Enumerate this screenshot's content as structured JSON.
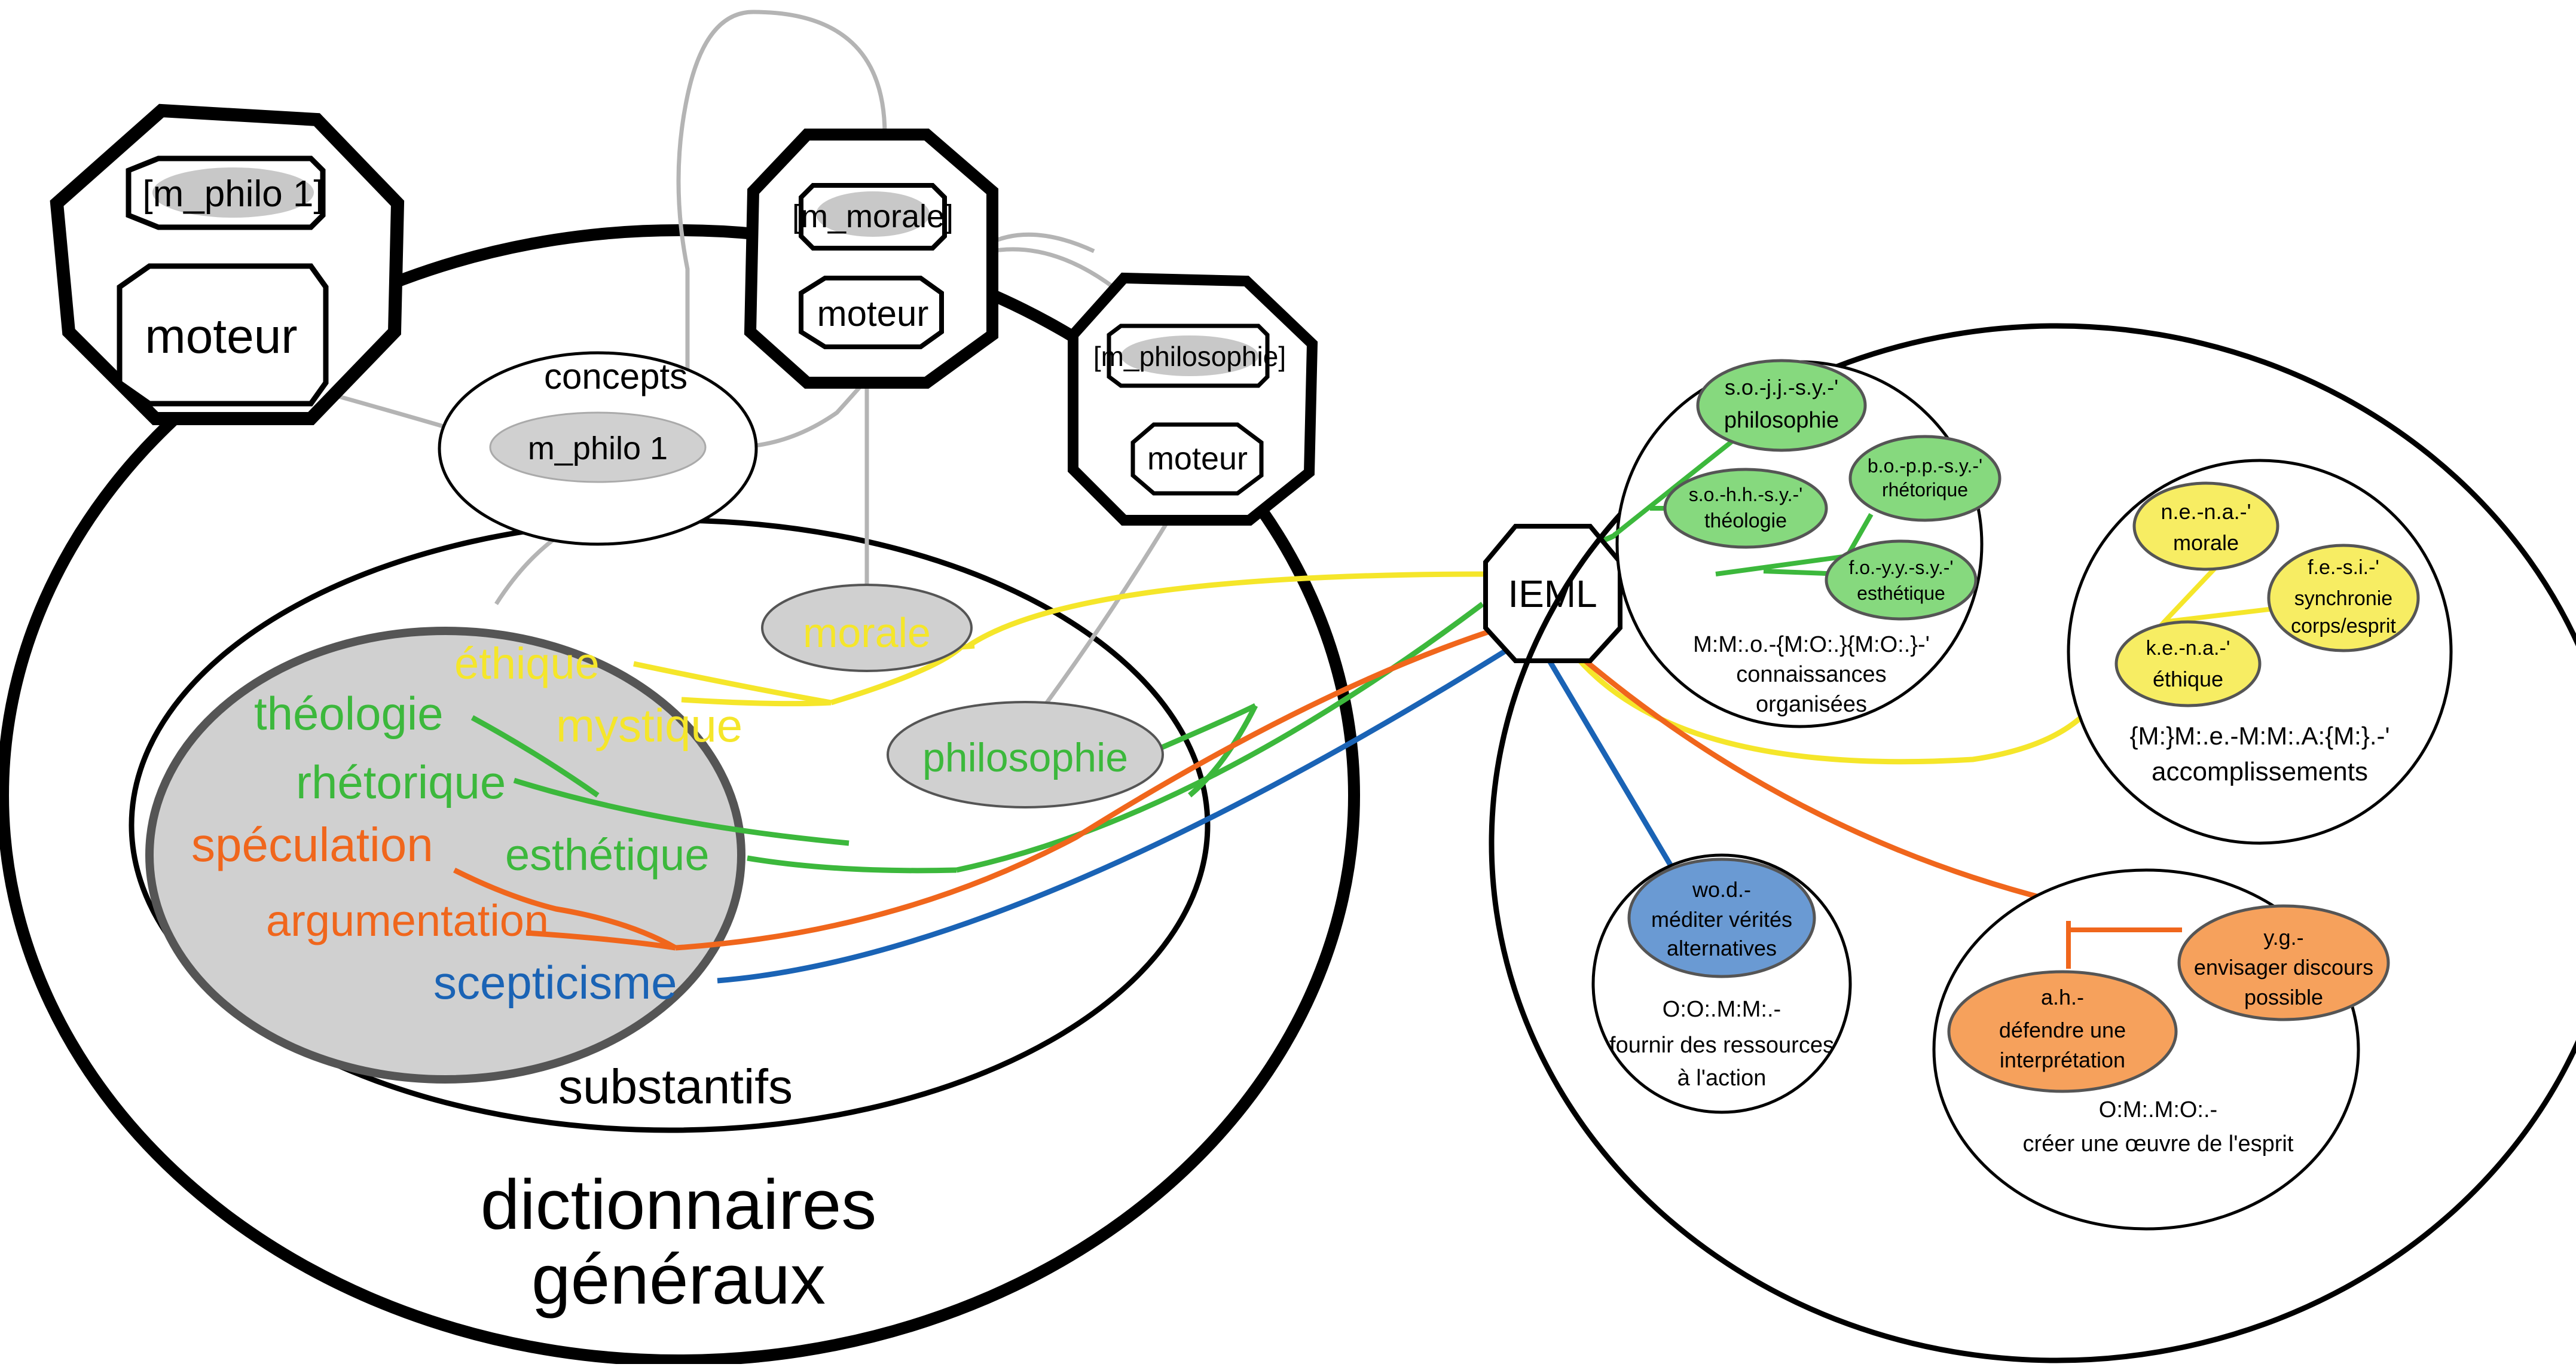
{
  "colors": {
    "yellow": "#f5e62a",
    "green": "#3cb83c",
    "orange": "#f0661c",
    "blue": "#1a63b5",
    "gray_link": "#b4b4b4",
    "gray_fill": "#cfcfcf",
    "green_fill": "#86d97e",
    "yellow_fill": "#f7ed63",
    "orange_fill": "#f6a15c",
    "blue_fill": "#6a9ad3"
  },
  "left": {
    "big_title_line1": "dictionnaires",
    "big_title_line2": "généraux",
    "substantifs": "substantifs",
    "concepts": "concepts",
    "m_philo_pill": "m_philo 1",
    "engines": [
      {
        "tag": "[m_philo 1]",
        "label": "moteur"
      },
      {
        "tag": "[m_morale]",
        "label": "moteur"
      },
      {
        "tag": "[m_philosophie]",
        "label": "moteur"
      }
    ],
    "morale": "morale",
    "philosophie": "philosophie",
    "words": {
      "ethique": "éthique",
      "mystique": "mystique",
      "theologie": "théologie",
      "rhetorique": "rhétorique",
      "esthetique": "esthétique",
      "speculation": "spéculation",
      "argumentation": "argumentation",
      "scepticisme": "scepticisme"
    }
  },
  "hub": "IEML",
  "right": {
    "knowledge": {
      "code": "M:M:.o.-{M:O:.}{M:O:.}-'",
      "line1": "connaissances",
      "line2": "organisées",
      "nodes": [
        {
          "code": "s.o.-j.j.-s.y.-'",
          "label": "philosophie"
        },
        {
          "code": "b.o.-p.p.-s.y.-'",
          "label": "rhétorique"
        },
        {
          "code": "s.o.-h.h.-s.y.-'",
          "label": "théologie"
        },
        {
          "code": "f.o.-y.y.-s.y.-'",
          "label": "esthétique"
        }
      ]
    },
    "accomplishments": {
      "code": "{M:}M:.e.-M:M:.A:{M:}.-'",
      "label": "accomplissements",
      "nodes": [
        {
          "code": "n.e.-n.a.-'",
          "label": "morale"
        },
        {
          "code": "f.e.-s.i.-'",
          "label1": "synchronie",
          "label2": "corps/esprit"
        },
        {
          "code": "k.e.-n.a.-'",
          "label": "éthique"
        }
      ]
    },
    "action": {
      "code": "O:O:.M:M:.-",
      "line1": "fournir des ressources",
      "line2": "à l'action",
      "node": {
        "code": "wo.d.-",
        "line1": "méditer vérités",
        "line2": "alternatives"
      }
    },
    "oeuvre": {
      "code": "O:M:.M:O:.-",
      "label": "créer une œuvre de l'esprit",
      "nodes": [
        {
          "code": "a.h.-",
          "line1": "défendre une",
          "line2": "interprétation"
        },
        {
          "code": "y.g.-",
          "line1": "envisager discours",
          "line2": "possible"
        }
      ]
    }
  }
}
